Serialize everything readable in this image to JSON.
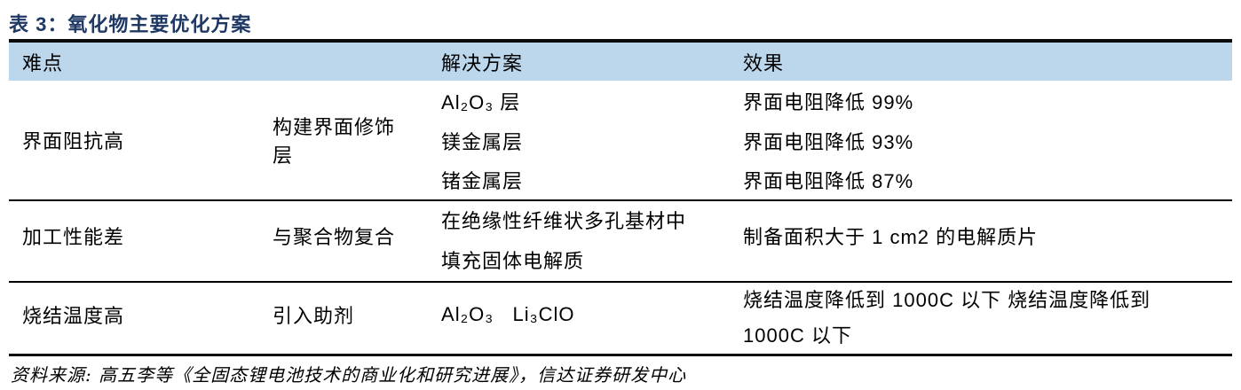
{
  "title": "表 3：氧化物主要优化方案",
  "colors": {
    "title_text": "#1f3864",
    "header_background": "#bcd7ec",
    "rule_lines": "#0a0a0a"
  },
  "table": {
    "headers": {
      "difficulty": "难点",
      "solution": "解决方案",
      "effect": "效果"
    },
    "sections": [
      {
        "difficulty": "界面阻抗高",
        "method": "构建界面修饰\n层",
        "rows": [
          {
            "solution": "Al₂O₃ 层",
            "effect": "界面电阻降低 99%"
          },
          {
            "solution": "镁金属层",
            "effect": "界面电阻降低 93%"
          },
          {
            "solution": "锗金属层",
            "effect": "界面电阻降低 87%"
          }
        ]
      },
      {
        "difficulty": "加工性能差",
        "method": "与聚合物复合",
        "rows": [
          {
            "solution": "在绝缘性纤维状多孔基材中\n填充固体电解质",
            "effect": "制备面积大于 1 cm2 的电解质片"
          }
        ]
      },
      {
        "difficulty": "烧结温度高",
        "method": "引入助剂",
        "rows": [
          {
            "solution": "Al₂O₃   Li₃ClO",
            "effect": "烧结温度降低到 1000C 以下 烧结温度降低到\n1000C 以下"
          }
        ]
      }
    ]
  },
  "footer": {
    "source": "资料来源: 高五李等《全固态锂电池技术的商业化和研究进展》，信达证券研发中心"
  }
}
